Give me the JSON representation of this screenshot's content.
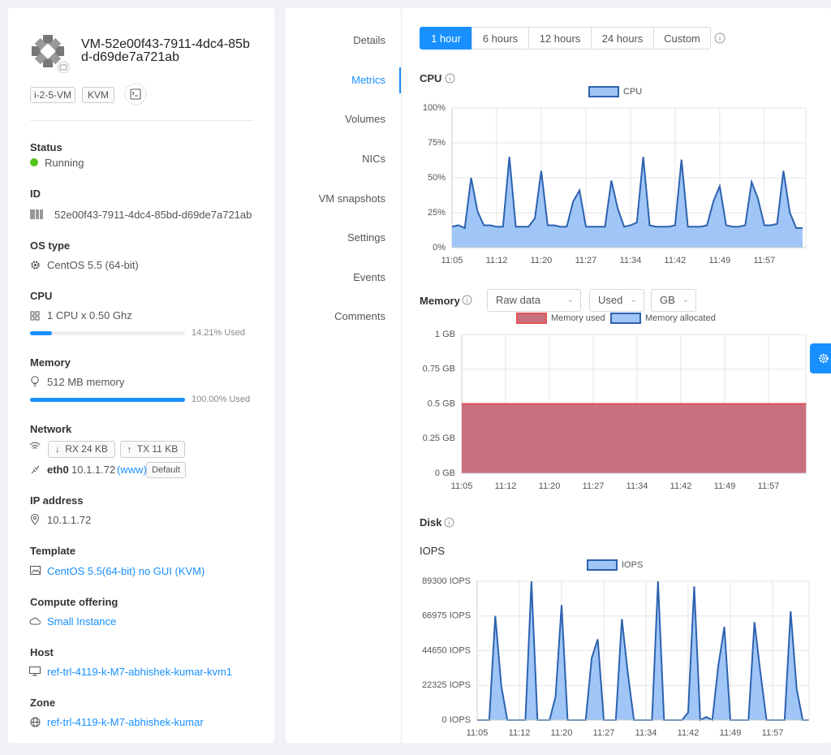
{
  "vm": {
    "name": "VM-52e00f43-7911-4dc4-85bd-d69de7a721ab",
    "tags": [
      "i-2-5-VM",
      "KVM"
    ],
    "status": {
      "label": "Status",
      "value": "Running"
    },
    "id": {
      "label": "ID",
      "value": "52e00f43-7911-4dc4-85bd-d69de7a721ab"
    },
    "os_type": {
      "label": "OS type",
      "value": "CentOS 5.5 (64-bit)"
    },
    "cpu": {
      "label": "CPU",
      "value": "1 CPU x 0.50 Ghz",
      "usage": {
        "value": 14.21,
        "label": "14.21% Used"
      }
    },
    "memory": {
      "label": "Memory",
      "value": "512 MB memory",
      "usage": {
        "value": 100,
        "label": "100.00% Used"
      }
    },
    "network": {
      "label": "Network",
      "rx": "RX 24 KB",
      "tx": "TX 11 KB",
      "nic": "eth0",
      "ip": "10.1.1.72",
      "network_name": "(www)",
      "default": "Default"
    },
    "ip_address": {
      "label": "IP address",
      "value": "10.1.1.72"
    },
    "template": {
      "label": "Template",
      "value": "CentOS 5.5(64-bit) no GUI (KVM)"
    },
    "compute_offering": {
      "label": "Compute offering",
      "value": "Small Instance"
    },
    "host": {
      "label": "Host",
      "value": "ref-trl-4119-k-M7-abhishek-kumar-kvm1"
    },
    "zone": {
      "label": "Zone",
      "value": "ref-trl-4119-k-M7-abhishek-kumar"
    }
  },
  "tabs": [
    "Details",
    "Metrics",
    "Volumes",
    "NICs",
    "VM snapshots",
    "Settings",
    "Events",
    "Comments"
  ],
  "time_ranges": [
    "1 hour",
    "6 hours",
    "12 hours",
    "24 hours",
    "Custom"
  ],
  "cpu_chart": {
    "type": "area",
    "title": "CPU",
    "categories": [
      "11:05",
      null,
      null,
      null,
      null,
      null,
      null,
      "11:12",
      null,
      null,
      null,
      null,
      null,
      null,
      "11:20",
      null,
      null,
      null,
      null,
      null,
      null,
      "11:27",
      null,
      null,
      null,
      null,
      null,
      null,
      "11:34",
      null,
      null,
      null,
      null,
      null,
      null,
      "11:42",
      null,
      null,
      null,
      null,
      null,
      null,
      "11:49",
      null,
      null,
      null,
      null,
      null,
      null,
      "11:57",
      null,
      null,
      null,
      null,
      null,
      null
    ],
    "series": [
      {
        "name": "CPU",
        "color": "#2d62b0",
        "fill": "#9fc6f6",
        "values": [
          15,
          16,
          14,
          50,
          26,
          16,
          16,
          15,
          15,
          65,
          15,
          15,
          15,
          21,
          55,
          16,
          16,
          15,
          15,
          33,
          41,
          15,
          15,
          15,
          15,
          48,
          28,
          15,
          16,
          18,
          65,
          16,
          15,
          15,
          15,
          16,
          63,
          15,
          15,
          15,
          16,
          33,
          44,
          16,
          15,
          15,
          16,
          47,
          35,
          16,
          16,
          17,
          55,
          25,
          14,
          14
        ]
      }
    ],
    "ylim": [
      0,
      100
    ],
    "yticks": [
      {
        "value": 0,
        "label": "0%"
      },
      {
        "value": 25,
        "label": "25%"
      },
      {
        "value": 50,
        "label": "50%"
      },
      {
        "value": 75,
        "label": "75%"
      },
      {
        "value": 100,
        "label": "100%"
      }
    ],
    "grid": true
  },
  "memory_chart": {
    "type": "area",
    "title": "Memory",
    "controls": [
      "Raw data",
      "Used",
      "GB"
    ],
    "categories": [
      "11:05",
      null,
      null,
      null,
      null,
      null,
      null,
      "11:12",
      null,
      null,
      null,
      null,
      null,
      null,
      "11:20",
      null,
      null,
      null,
      null,
      null,
      null,
      "11:27",
      null,
      null,
      null,
      null,
      null,
      null,
      "11:34",
      null,
      null,
      null,
      null,
      null,
      null,
      "11:42",
      null,
      null,
      null,
      null,
      null,
      null,
      "11:49",
      null,
      null,
      null,
      null,
      null,
      null,
      "11:57",
      null,
      null,
      null,
      null,
      null,
      null
    ],
    "series": [
      {
        "name": "Memory used",
        "color": "#e05555",
        "fill": "#c8707e",
        "values": [
          0.5,
          0.5,
          0.5,
          0.5,
          0.5,
          0.5,
          0.5,
          0.5,
          0.5,
          0.5,
          0.5,
          0.5,
          0.5,
          0.5,
          0.5,
          0.5,
          0.5,
          0.5,
          0.5,
          0.5,
          0.5,
          0.5,
          0.5,
          0.5,
          0.5,
          0.5,
          0.5,
          0.5,
          0.5,
          0.5,
          0.5,
          0.5,
          0.5,
          0.5,
          0.5,
          0.5,
          0.5,
          0.5,
          0.5,
          0.5,
          0.5,
          0.5,
          0.5,
          0.5,
          0.5,
          0.5,
          0.5,
          0.5,
          0.5,
          0.5,
          0.5,
          0.5,
          0.5,
          0.5,
          0.5,
          0.5
        ]
      },
      {
        "name": "Memory allocated",
        "color": "#2d62b0",
        "fill": "#9fc6f6",
        "values": [
          0.5,
          0.5,
          0.5,
          0.5,
          0.5,
          0.5,
          0.5,
          0.5,
          0.5,
          0.5,
          0.5,
          0.5,
          0.5,
          0.5,
          0.5,
          0.5,
          0.5,
          0.5,
          0.5,
          0.5,
          0.5,
          0.5,
          0.5,
          0.5,
          0.5,
          0.5,
          0.5,
          0.5,
          0.5,
          0.5,
          0.5,
          0.5,
          0.5,
          0.5,
          0.5,
          0.5,
          0.5,
          0.5,
          0.5,
          0.5,
          0.5,
          0.5,
          0.5,
          0.5,
          0.5,
          0.5,
          0.5,
          0.5,
          0.5,
          0.5,
          0.5,
          0.5,
          0.5,
          0.5,
          0.5,
          0.5
        ]
      }
    ],
    "ylim": [
      0,
      1
    ],
    "yticks": [
      {
        "value": 0,
        "label": "0 GB"
      },
      {
        "value": 0.25,
        "label": "0.25 GB"
      },
      {
        "value": 0.5,
        "label": "0.5 GB"
      },
      {
        "value": 0.75,
        "label": "0.75 GB"
      },
      {
        "value": 1,
        "label": "1 GB"
      }
    ],
    "grid": true
  },
  "disk_chart": {
    "type": "area",
    "title": "Disk",
    "subtitle": "IOPS",
    "categories": [
      "11:05",
      null,
      null,
      null,
      null,
      null,
      null,
      "11:12",
      null,
      null,
      null,
      null,
      null,
      null,
      "11:20",
      null,
      null,
      null,
      null,
      null,
      null,
      "11:27",
      null,
      null,
      null,
      null,
      null,
      null,
      "11:34",
      null,
      null,
      null,
      null,
      null,
      null,
      "11:42",
      null,
      null,
      null,
      null,
      null,
      null,
      "11:49",
      null,
      null,
      null,
      null,
      null,
      null,
      "11:57",
      null,
      null,
      null,
      null,
      null,
      null
    ],
    "series": [
      {
        "name": "IOPS",
        "color": "#2d62b0",
        "fill": "#9fc6f6",
        "values": [
          0,
          0,
          0,
          67000,
          22000,
          0,
          0,
          0,
          0,
          89300,
          0,
          0,
          0,
          15000,
          74000,
          0,
          0,
          0,
          0,
          40000,
          52000,
          0,
          0,
          0,
          65000,
          30000,
          0,
          0,
          0,
          0,
          89300,
          0,
          0,
          0,
          0,
          5000,
          86000,
          0,
          2000,
          0,
          35000,
          60000,
          0,
          0,
          0,
          0,
          63000,
          30000,
          0,
          0,
          0,
          0,
          70000,
          20000,
          0,
          0
        ]
      }
    ],
    "ylim": [
      0,
      89300
    ],
    "yticks": [
      {
        "value": 0,
        "label": "0 IOPS"
      },
      {
        "value": 22325,
        "label": "22325 IOPS"
      },
      {
        "value": 44650,
        "label": "44650 IOPS"
      },
      {
        "value": 66975,
        "label": "66975 IOPS"
      },
      {
        "value": 89300,
        "label": "89300 IOPS"
      }
    ],
    "grid": true
  }
}
